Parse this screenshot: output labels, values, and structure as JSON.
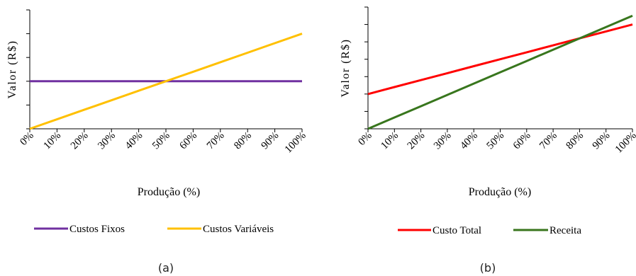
{
  "chart_data": [
    {
      "type": "line",
      "panel_label": "(a)",
      "categories": [
        "0%",
        "10%",
        "20%",
        "30%",
        "40%",
        "50%",
        "60%",
        "70%",
        "80%",
        "90%",
        "100%"
      ],
      "xlabel": "Produção (%)",
      "ylabel": "Valor (R$)",
      "ylim": [
        0,
        5
      ],
      "y_tick_labels": "none",
      "legend": "bottom",
      "series": [
        {
          "name": "Custos Fixos",
          "color": "#7030A0",
          "values": [
            2,
            2,
            2,
            2,
            2,
            2,
            2,
            2,
            2,
            2,
            2
          ]
        },
        {
          "name": "Custos Variáveis",
          "color": "#FFC000",
          "values": [
            0,
            0.4,
            0.8,
            1.2,
            1.6,
            2.0,
            2.4,
            2.8,
            3.2,
            3.6,
            4.0
          ]
        }
      ]
    },
    {
      "type": "line",
      "panel_label": "(b)",
      "categories": [
        "0%",
        "10%",
        "20%",
        "30%",
        "40%",
        "50%",
        "60%",
        "70%",
        "80%",
        "90%",
        "100%"
      ],
      "xlabel": "Produção (%)",
      "ylabel": "Valor (R$)",
      "ylim": [
        0,
        7
      ],
      "y_tick_labels": "none",
      "legend": "bottom",
      "series": [
        {
          "name": "Custo Total",
          "color": "#FF0000",
          "values": [
            2.0,
            2.4,
            2.8,
            3.2,
            3.6,
            4.0,
            4.4,
            4.8,
            5.2,
            5.6,
            6.0
          ]
        },
        {
          "name": "Receita",
          "color": "#38761D",
          "values": [
            0,
            0.65,
            1.3,
            1.95,
            2.6,
            3.25,
            3.9,
            4.55,
            5.2,
            5.85,
            6.5
          ]
        }
      ]
    }
  ]
}
